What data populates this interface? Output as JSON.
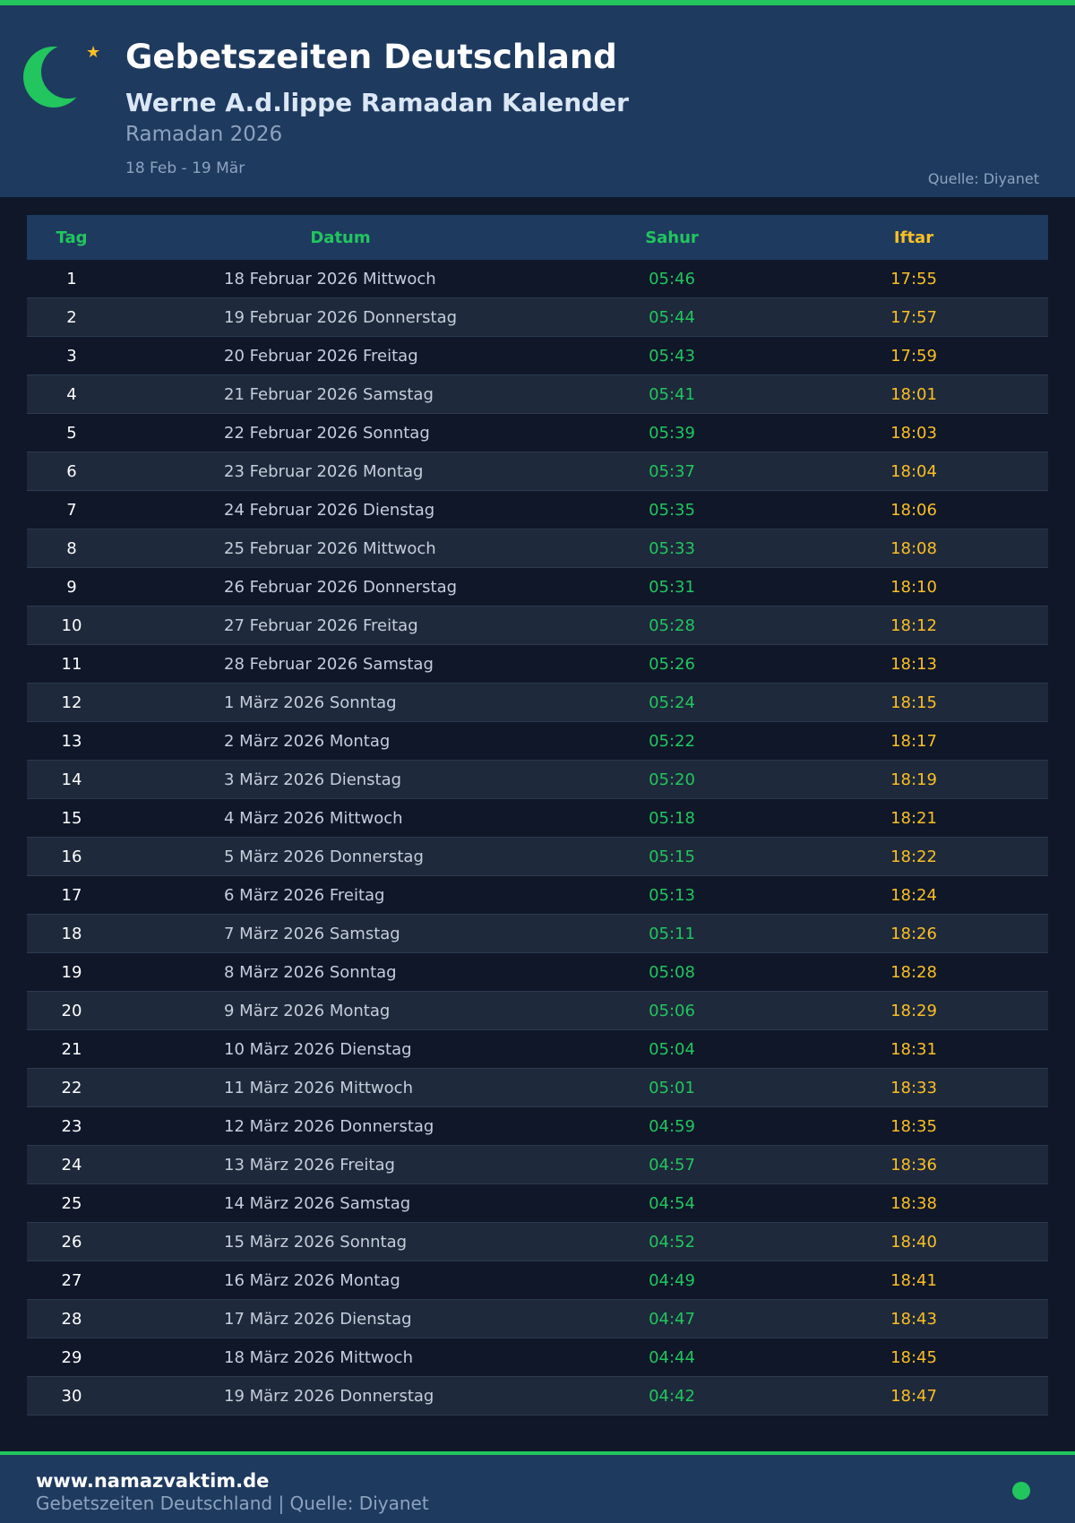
{
  "header": {
    "title": "Gebetszeiten Deutschland",
    "subtitle": "Werne A.d.lippe Ramadan Kalender",
    "season": "Ramadan 2026",
    "range": "18 Feb - 19 Mär",
    "source": "Quelle: Diyanet",
    "icons": [
      "crescent-moon-icon",
      "star-icon"
    ]
  },
  "colors": {
    "accent": "#22c55e",
    "iftar": "#fbbf24",
    "header_bg": "#1e3a5f",
    "page_bg": "#0f1729"
  },
  "table": {
    "columns": [
      "Tag",
      "Datum",
      "Sahur",
      "Iftar"
    ],
    "rows": [
      [
        "1",
        "18 Februar 2026 Mittwoch",
        "05:46",
        "17:55"
      ],
      [
        "2",
        "19 Februar 2026 Donnerstag",
        "05:44",
        "17:57"
      ],
      [
        "3",
        "20 Februar 2026 Freitag",
        "05:43",
        "17:59"
      ],
      [
        "4",
        "21 Februar 2026 Samstag",
        "05:41",
        "18:01"
      ],
      [
        "5",
        "22 Februar 2026 Sonntag",
        "05:39",
        "18:03"
      ],
      [
        "6",
        "23 Februar 2026 Montag",
        "05:37",
        "18:04"
      ],
      [
        "7",
        "24 Februar 2026 Dienstag",
        "05:35",
        "18:06"
      ],
      [
        "8",
        "25 Februar 2026 Mittwoch",
        "05:33",
        "18:08"
      ],
      [
        "9",
        "26 Februar 2026 Donnerstag",
        "05:31",
        "18:10"
      ],
      [
        "10",
        "27 Februar 2026 Freitag",
        "05:28",
        "18:12"
      ],
      [
        "11",
        "28 Februar 2026 Samstag",
        "05:26",
        "18:13"
      ],
      [
        "12",
        "1 März 2026 Sonntag",
        "05:24",
        "18:15"
      ],
      [
        "13",
        "2 März 2026 Montag",
        "05:22",
        "18:17"
      ],
      [
        "14",
        "3 März 2026 Dienstag",
        "05:20",
        "18:19"
      ],
      [
        "15",
        "4 März 2026 Mittwoch",
        "05:18",
        "18:21"
      ],
      [
        "16",
        "5 März 2026 Donnerstag",
        "05:15",
        "18:22"
      ],
      [
        "17",
        "6 März 2026 Freitag",
        "05:13",
        "18:24"
      ],
      [
        "18",
        "7 März 2026 Samstag",
        "05:11",
        "18:26"
      ],
      [
        "19",
        "8 März 2026 Sonntag",
        "05:08",
        "18:28"
      ],
      [
        "20",
        "9 März 2026 Montag",
        "05:06",
        "18:29"
      ],
      [
        "21",
        "10 März 2026 Dienstag",
        "05:04",
        "18:31"
      ],
      [
        "22",
        "11 März 2026 Mittwoch",
        "05:01",
        "18:33"
      ],
      [
        "23",
        "12 März 2026 Donnerstag",
        "04:59",
        "18:35"
      ],
      [
        "24",
        "13 März 2026 Freitag",
        "04:57",
        "18:36"
      ],
      [
        "25",
        "14 März 2026 Samstag",
        "04:54",
        "18:38"
      ],
      [
        "26",
        "15 März 2026 Sonntag",
        "04:52",
        "18:40"
      ],
      [
        "27",
        "16 März 2026 Montag",
        "04:49",
        "18:41"
      ],
      [
        "28",
        "17 März 2026 Dienstag",
        "04:47",
        "18:43"
      ],
      [
        "29",
        "18 März 2026 Mittwoch",
        "04:44",
        "18:45"
      ],
      [
        "30",
        "19 März 2026 Donnerstag",
        "04:42",
        "18:47"
      ]
    ]
  },
  "footer": {
    "site": "www.namazvaktim.de",
    "subtitle": "Gebetszeiten Deutschland | Quelle: Diyanet",
    "status_icon": "status-dot-icon"
  }
}
